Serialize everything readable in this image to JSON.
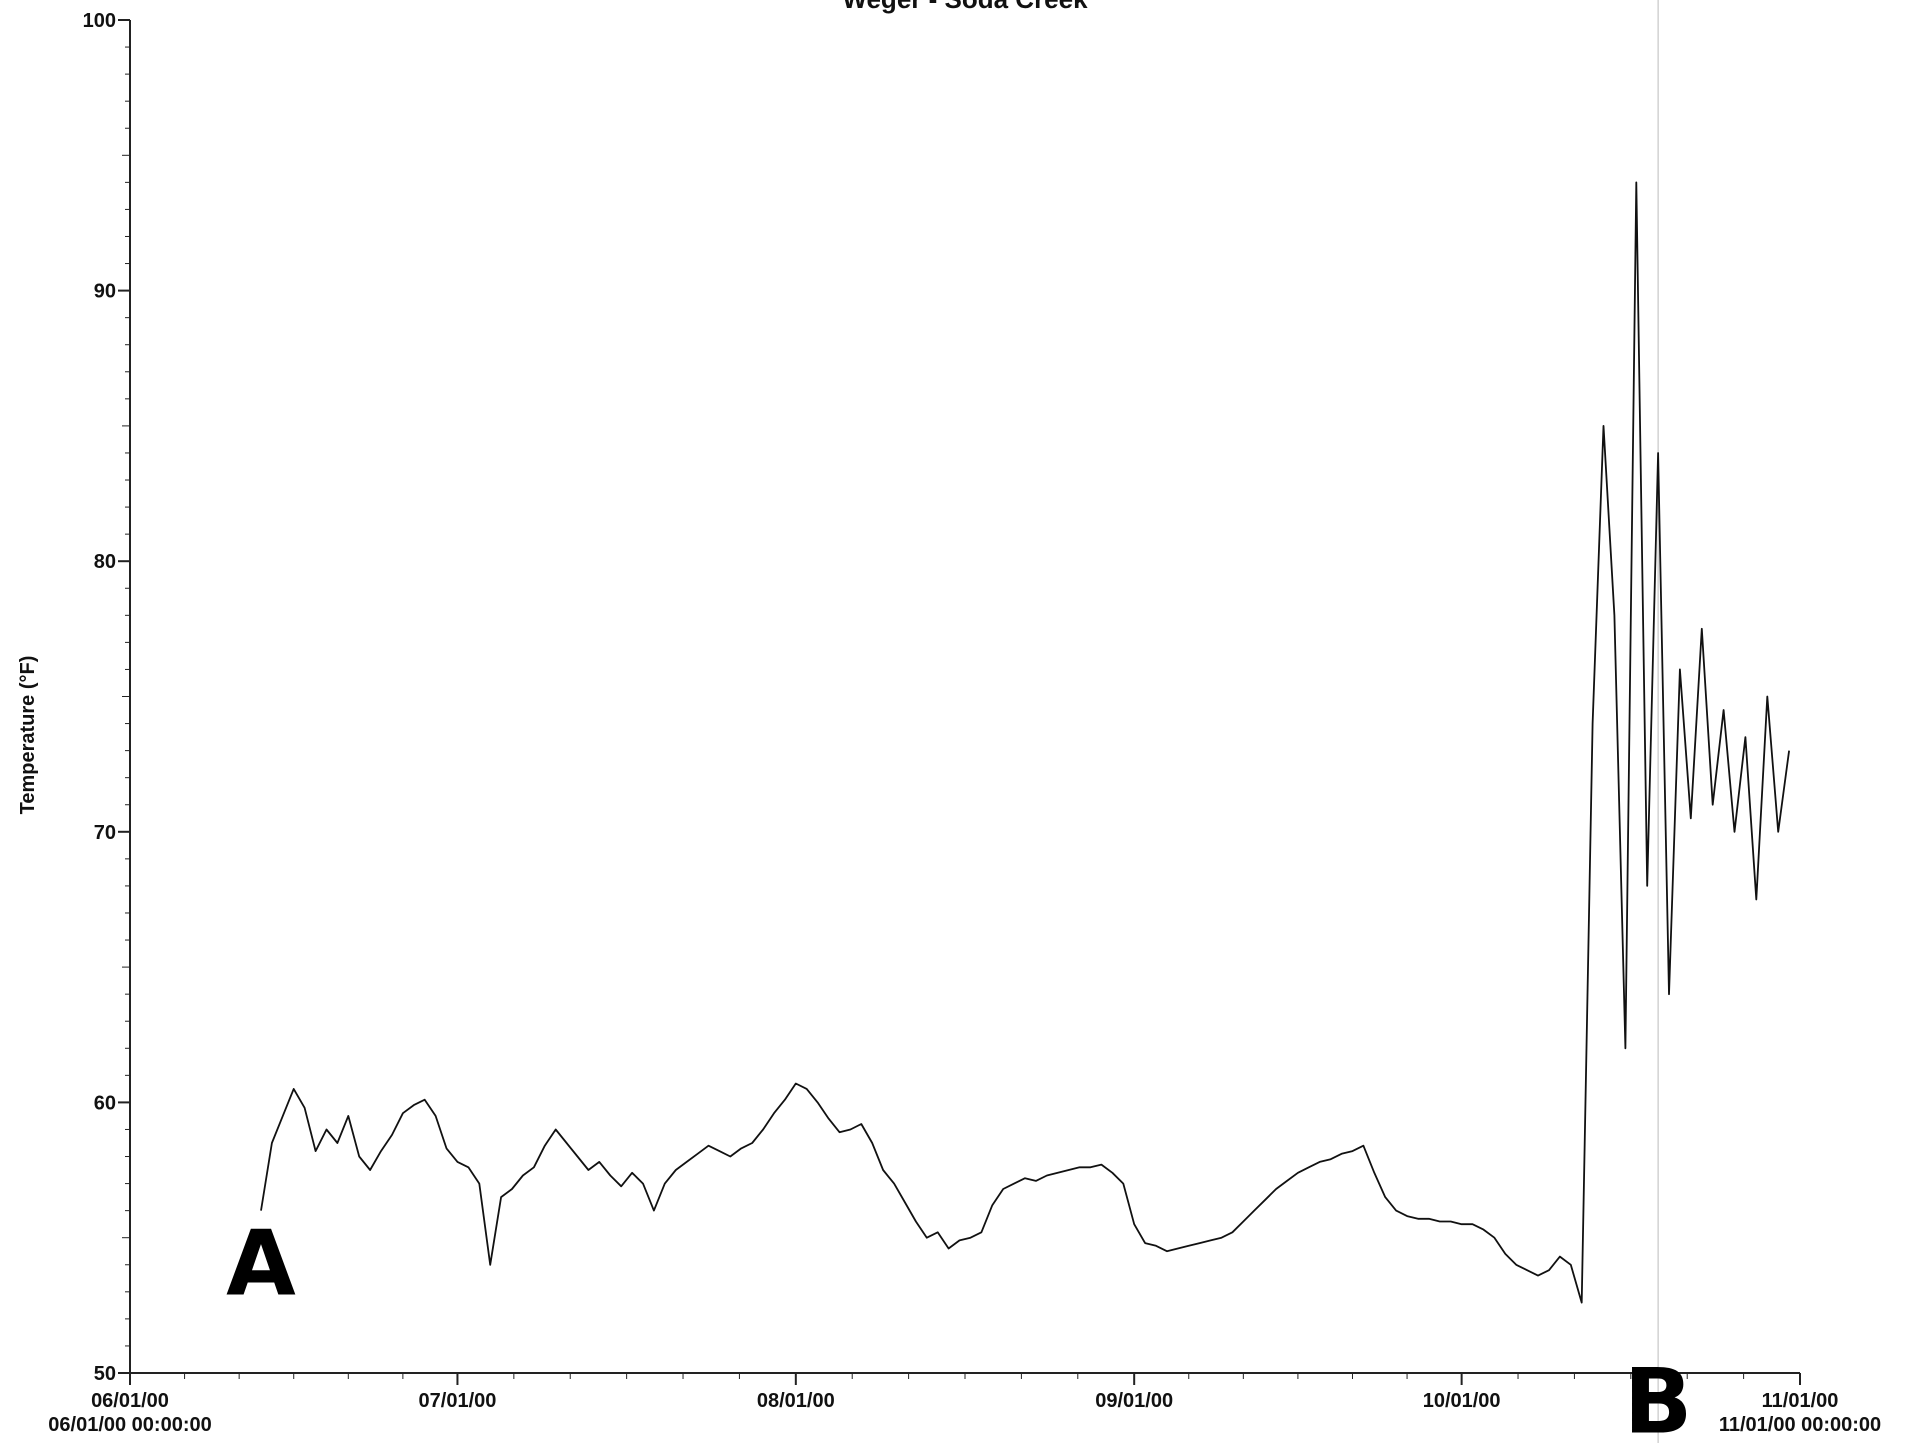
{
  "chart_data": {
    "type": "line",
    "title": "Weger - Soda Creek",
    "xlabel": "",
    "ylabel": "Temperature  (°F)",
    "ylim": [
      50,
      100
    ],
    "yticks": [
      50,
      60,
      70,
      80,
      90,
      100
    ],
    "xlim": [
      "06/01/00 00:00:00",
      "11/01/00 00:00:00"
    ],
    "xticks": [
      {
        "date": "06/01/00",
        "label": "06/01/00",
        "sublabel": "06/01/00 00:00:00"
      },
      {
        "date": "07/01/00",
        "label": "07/01/00",
        "sublabel": ""
      },
      {
        "date": "08/01/00",
        "label": "08/01/00",
        "sublabel": ""
      },
      {
        "date": "09/01/00",
        "label": "09/01/00",
        "sublabel": ""
      },
      {
        "date": "10/01/00",
        "label": "10/01/00",
        "sublabel": ""
      },
      {
        "date": "11/01/00",
        "label": "11/01/00",
        "sublabel": "11/01/00 00:00:00"
      }
    ],
    "grid": false,
    "legend": "none",
    "annotations": [
      {
        "text": "A",
        "date": "06/13/00",
        "value": 52.9
      },
      {
        "text": "B",
        "date": "10/19/00",
        "value": 47.8
      }
    ],
    "marker_line_date": "10/19/00",
    "series": [
      {
        "name": "",
        "color": "#111111",
        "points": [
          [
            "06/13/00",
            56.0
          ],
          [
            "06/14/00",
            58.5
          ],
          [
            "06/15/00",
            59.5
          ],
          [
            "06/16/00",
            60.5
          ],
          [
            "06/17/00",
            59.8
          ],
          [
            "06/18/00",
            58.2
          ],
          [
            "06/19/00",
            59.0
          ],
          [
            "06/20/00",
            58.5
          ],
          [
            "06/21/00",
            59.5
          ],
          [
            "06/22/00",
            58.0
          ],
          [
            "06/23/00",
            57.5
          ],
          [
            "06/24/00",
            58.2
          ],
          [
            "06/25/00",
            58.8
          ],
          [
            "06/26/00",
            59.6
          ],
          [
            "06/27/00",
            59.9
          ],
          [
            "06/28/00",
            60.1
          ],
          [
            "06/29/00",
            59.5
          ],
          [
            "06/30/00",
            58.3
          ],
          [
            "07/01/00",
            57.8
          ],
          [
            "07/02/00",
            57.6
          ],
          [
            "07/03/00",
            57.0
          ],
          [
            "07/04/00",
            54.0
          ],
          [
            "07/05/00",
            56.5
          ],
          [
            "07/06/00",
            56.8
          ],
          [
            "07/07/00",
            57.3
          ],
          [
            "07/08/00",
            57.6
          ],
          [
            "07/09/00",
            58.4
          ],
          [
            "07/10/00",
            59.0
          ],
          [
            "07/11/00",
            58.5
          ],
          [
            "07/12/00",
            58.0
          ],
          [
            "07/13/00",
            57.5
          ],
          [
            "07/14/00",
            57.8
          ],
          [
            "07/15/00",
            57.3
          ],
          [
            "07/16/00",
            56.9
          ],
          [
            "07/17/00",
            57.4
          ],
          [
            "07/18/00",
            57.0
          ],
          [
            "07/19/00",
            56.0
          ],
          [
            "07/20/00",
            57.0
          ],
          [
            "07/21/00",
            57.5
          ],
          [
            "07/22/00",
            57.8
          ],
          [
            "07/23/00",
            58.1
          ],
          [
            "07/24/00",
            58.4
          ],
          [
            "07/25/00",
            58.2
          ],
          [
            "07/26/00",
            58.0
          ],
          [
            "07/27/00",
            58.3
          ],
          [
            "07/28/00",
            58.5
          ],
          [
            "07/29/00",
            59.0
          ],
          [
            "07/30/00",
            59.6
          ],
          [
            "07/31/00",
            60.1
          ],
          [
            "08/01/00",
            60.7
          ],
          [
            "08/02/00",
            60.5
          ],
          [
            "08/03/00",
            60.0
          ],
          [
            "08/04/00",
            59.4
          ],
          [
            "08/05/00",
            58.9
          ],
          [
            "08/06/00",
            59.0
          ],
          [
            "08/07/00",
            59.2
          ],
          [
            "08/08/00",
            58.5
          ],
          [
            "08/09/00",
            57.5
          ],
          [
            "08/10/00",
            57.0
          ],
          [
            "08/11/00",
            56.3
          ],
          [
            "08/12/00",
            55.6
          ],
          [
            "08/13/00",
            55.0
          ],
          [
            "08/14/00",
            55.2
          ],
          [
            "08/15/00",
            54.6
          ],
          [
            "08/16/00",
            54.9
          ],
          [
            "08/17/00",
            55.0
          ],
          [
            "08/18/00",
            55.2
          ],
          [
            "08/19/00",
            56.2
          ],
          [
            "08/20/00",
            56.8
          ],
          [
            "08/21/00",
            57.0
          ],
          [
            "08/22/00",
            57.2
          ],
          [
            "08/23/00",
            57.1
          ],
          [
            "08/24/00",
            57.3
          ],
          [
            "08/25/00",
            57.4
          ],
          [
            "08/26/00",
            57.5
          ],
          [
            "08/27/00",
            57.6
          ],
          [
            "08/28/00",
            57.6
          ],
          [
            "08/29/00",
            57.7
          ],
          [
            "08/30/00",
            57.4
          ],
          [
            "08/31/00",
            57.0
          ],
          [
            "09/01/00",
            55.5
          ],
          [
            "09/02/00",
            54.8
          ],
          [
            "09/03/00",
            54.7
          ],
          [
            "09/04/00",
            54.5
          ],
          [
            "09/05/00",
            54.6
          ],
          [
            "09/06/00",
            54.7
          ],
          [
            "09/07/00",
            54.8
          ],
          [
            "09/08/00",
            54.9
          ],
          [
            "09/09/00",
            55.0
          ],
          [
            "09/10/00",
            55.2
          ],
          [
            "09/11/00",
            55.6
          ],
          [
            "09/12/00",
            56.0
          ],
          [
            "09/13/00",
            56.4
          ],
          [
            "09/14/00",
            56.8
          ],
          [
            "09/15/00",
            57.1
          ],
          [
            "09/16/00",
            57.4
          ],
          [
            "09/17/00",
            57.6
          ],
          [
            "09/18/00",
            57.8
          ],
          [
            "09/19/00",
            57.9
          ],
          [
            "09/20/00",
            58.1
          ],
          [
            "09/21/00",
            58.2
          ],
          [
            "09/22/00",
            58.4
          ],
          [
            "09/23/00",
            57.4
          ],
          [
            "09/24/00",
            56.5
          ],
          [
            "09/25/00",
            56.0
          ],
          [
            "09/26/00",
            55.8
          ],
          [
            "09/27/00",
            55.7
          ],
          [
            "09/28/00",
            55.7
          ],
          [
            "09/29/00",
            55.6
          ],
          [
            "09/30/00",
            55.6
          ],
          [
            "10/01/00",
            55.5
          ],
          [
            "10/02/00",
            55.5
          ],
          [
            "10/03/00",
            55.3
          ],
          [
            "10/04/00",
            55.0
          ],
          [
            "10/05/00",
            54.4
          ],
          [
            "10/06/00",
            54.0
          ],
          [
            "10/07/00",
            53.8
          ],
          [
            "10/08/00",
            53.6
          ],
          [
            "10/09/00",
            53.8
          ],
          [
            "10/10/00",
            54.3
          ],
          [
            "10/11/00",
            54.0
          ],
          [
            "10/12/00",
            52.6
          ],
          [
            "10/13/00",
            74.0
          ],
          [
            "10/14/00",
            85.0
          ],
          [
            "10/15/00",
            78.0
          ],
          [
            "10/16/00",
            62.0
          ],
          [
            "10/17/00",
            94.0
          ],
          [
            "10/18/00",
            68.0
          ],
          [
            "10/19/00",
            84.0
          ],
          [
            "10/20/00",
            64.0
          ],
          [
            "10/21/00",
            76.0
          ],
          [
            "10/22/00",
            70.5
          ],
          [
            "10/23/00",
            77.5
          ],
          [
            "10/24/00",
            71.0
          ],
          [
            "10/25/00",
            74.5
          ],
          [
            "10/26/00",
            70.0
          ],
          [
            "10/27/00",
            73.5
          ],
          [
            "10/28/00",
            67.5
          ],
          [
            "10/29/00",
            75.0
          ],
          [
            "10/30/00",
            70.0
          ],
          [
            "10/31/00",
            73.0
          ]
        ]
      }
    ]
  }
}
